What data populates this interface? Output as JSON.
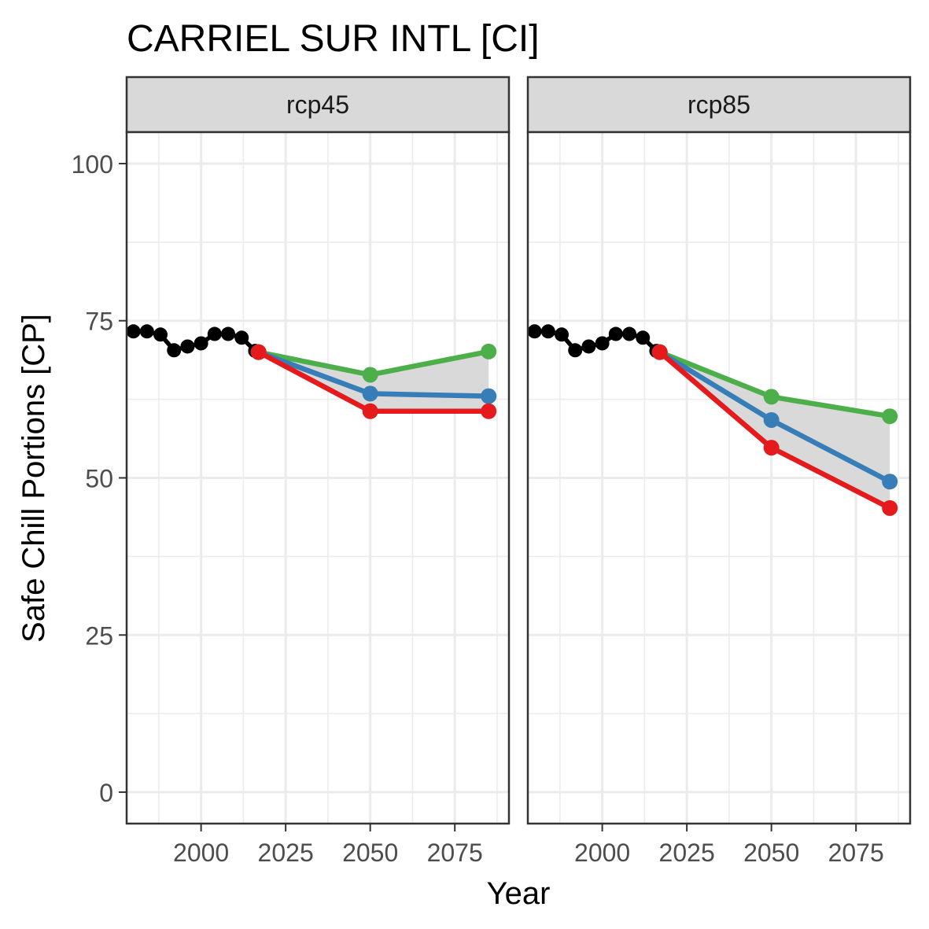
{
  "chart_data": {
    "type": "line",
    "title": "CARRIEL SUR INTL [CI]",
    "xlabel": "Year",
    "ylabel": "Safe Chill Portions [CP]",
    "xlim": [
      1978,
      2091
    ],
    "ylim": [
      -5,
      105
    ],
    "x_ticks": [
      2000,
      2025,
      2050,
      2075
    ],
    "y_ticks": [
      0,
      25,
      50,
      75,
      100
    ],
    "grid": true,
    "legend": "none",
    "colors": {
      "historic": "#000000",
      "low": "#e41a1c",
      "mid": "#377eb8",
      "high": "#4daf4a",
      "ribbon": "#d9d9d9",
      "strip": "#d9d9d9",
      "grid": "#ebebeb",
      "panel_border": "#333333"
    },
    "panels": [
      {
        "label": "rcp45",
        "historic": {
          "x": [
            1980,
            1984,
            1988,
            1992,
            1996,
            2000,
            2004,
            2008,
            2012,
            2016
          ],
          "y": [
            73.3,
            73.3,
            72.8,
            70.3,
            70.9,
            71.4,
            72.9,
            72.9,
            72.3,
            70.2
          ]
        },
        "scenarios": [
          {
            "key": "high",
            "x": [
              2017,
              2050,
              2085
            ],
            "y": [
              70,
              66.4,
              70.1
            ]
          },
          {
            "key": "mid",
            "x": [
              2017,
              2050,
              2085
            ],
            "y": [
              70,
              63.4,
              63.0
            ]
          },
          {
            "key": "low",
            "x": [
              2017,
              2050,
              2085
            ],
            "y": [
              70,
              60.6,
              60.6
            ]
          }
        ]
      },
      {
        "label": "rcp85",
        "historic": {
          "x": [
            1980,
            1984,
            1988,
            1992,
            1996,
            2000,
            2004,
            2008,
            2012,
            2016
          ],
          "y": [
            73.3,
            73.3,
            72.8,
            70.3,
            70.9,
            71.4,
            72.9,
            72.9,
            72.3,
            70.2
          ]
        },
        "scenarios": [
          {
            "key": "high",
            "x": [
              2017,
              2050,
              2085
            ],
            "y": [
              70,
              62.9,
              59.8
            ]
          },
          {
            "key": "mid",
            "x": [
              2017,
              2050,
              2085
            ],
            "y": [
              70,
              59.2,
              49.4
            ]
          },
          {
            "key": "low",
            "x": [
              2017,
              2050,
              2085
            ],
            "y": [
              70,
              54.8,
              45.2
            ]
          }
        ]
      }
    ]
  }
}
